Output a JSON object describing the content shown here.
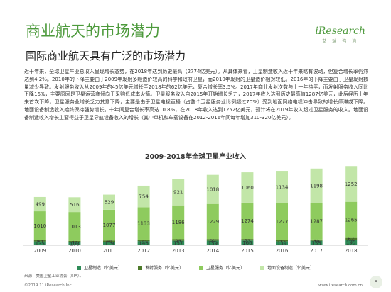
{
  "header": {
    "title": "商业航天的市场潜力",
    "subtitle": "国际商业航天具有广泛的市场潜力",
    "logo_text": "iResearch",
    "logo_sub": "艾 瑞 咨 询"
  },
  "body_paragraph": "近十年来，全球卫星产业总收入呈现增长态势，在2018年达到历史最高（2774亿美元）。从具体来看，卫星制造收入近十年来略有波动，但复合增长率仍然达到4.2%。2010年的下降主要由于2009年发射多颗造价较高的科学和政府卫星，而2010年发射的卫星造价相对较低。2016年的下降主要由于卫星发射数量减少导致。发射服务收入从2009年的45亿美元增长至2018年的62亿美元，复合增长率3.5%。2017年商业发射次数与上一年持平，而发射服务收入同比下降16%，主要原因是卫星运营商倾向于采购低成本火箭。卫星服务收入自2015年开始增长乏力，2017年收入达到历史最高值1287亿美元，此后经历十年来首次下降。卫星服务业增长乏力其意下降，主要是由于卫星电视直播（占整个卫星服务业比例超过70%）受到地面网络电视冲击导致的增长停滞或下降。地面设备制造收入始终保持强势增长，十年间复合增长率高达10.8%，在2018年收入达到1252亿美元，预计将在2019年收入超过卫星服务的收入。地面设备制造收入增长主要得益于卫星导航设备收入的增长（其中单机和车载设备在2012-2016年间每年增加310-320亿美元）。",
  "chart_data": {
    "type": "bar",
    "stacked": true,
    "title": "2009-2018年全球卫星产业收入",
    "categories": [
      "2009",
      "2010",
      "2011",
      "2012",
      "2013",
      "2014",
      "2015",
      "2016",
      "2017",
      "2018"
    ],
    "series": [
      {
        "name": "卫星制造（亿美元）",
        "color": "#2e8b57",
        "values": [
          135,
          108,
          119,
          146,
          157,
          159,
          166,
          139,
          155,
          195
        ]
      },
      {
        "name": "发射服务（亿美元）",
        "color": "#4d7a2a",
        "values": [
          45,
          43,
          48,
          53,
          54,
          59,
          54,
          55,
          46,
          62
        ]
      },
      {
        "name": "卫星服务（亿美元）",
        "color": "#8ecb5e",
        "values": [
          1010,
          1013,
          1077,
          1133,
          1186,
          1229,
          1274,
          1277,
          1287,
          1265
        ]
      },
      {
        "name": "地面设备制造（亿美元）",
        "color": "#c2e6a8",
        "values": [
          499,
          516,
          529,
          754,
          921,
          1018,
          1060,
          1134,
          1198,
          1252
        ]
      }
    ],
    "legend_position": "bottom",
    "grid": false
  },
  "source": "来源：美国卫星工业协会（SIA）。",
  "footer": {
    "copyright": "©2019.11 iResearch Inc.",
    "site": "www.iresearch.com.cn",
    "page_number": "8"
  }
}
